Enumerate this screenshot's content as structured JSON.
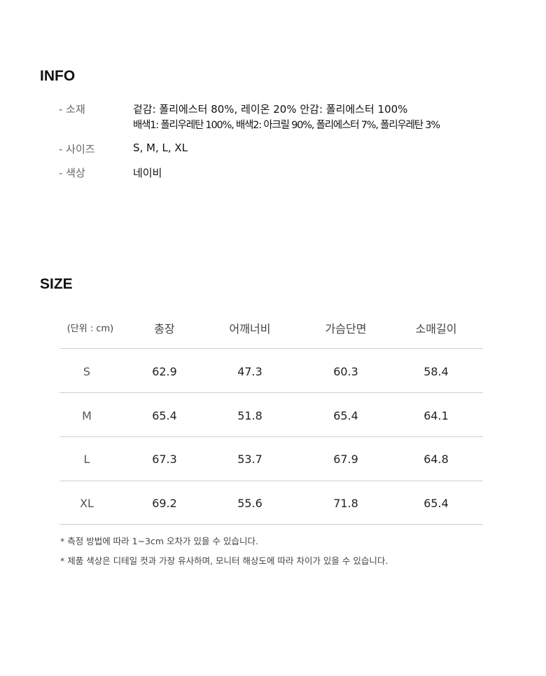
{
  "info": {
    "title": "INFO",
    "rows": [
      {
        "label": "- 소재",
        "lines": [
          "겉감: 폴리에스터 80%, 레이온 20% 안감: 폴리에스터 100%",
          "배색1: 폴리우레탄 100%, 배색2: 아크릴 90%, 폴리에스터 7%, 폴리우레탄 3%"
        ]
      },
      {
        "label": "- 사이즈",
        "lines": [
          "S, M, L, XL"
        ]
      },
      {
        "label": "- 색상",
        "lines": [
          "네이비"
        ]
      }
    ]
  },
  "size": {
    "title": "SIZE",
    "headers": [
      "(단위 : cm)",
      "총장",
      "어깨너비",
      "가슴단면",
      "소매길이"
    ],
    "rows": [
      [
        "S",
        "62.9",
        "47.3",
        "60.3",
        "58.4"
      ],
      [
        "M",
        "65.4",
        "51.8",
        "65.4",
        "64.1"
      ],
      [
        "L",
        "67.3",
        "53.7",
        "67.9",
        "64.8"
      ],
      [
        "XL",
        "69.2",
        "55.6",
        "71.8",
        "65.4"
      ]
    ],
    "notes": [
      "* 측정 방법에 따라 1~3cm 오차가 있을 수 있습니다.",
      "* 제품 색상은 디테일 컷과 가장 유사하며, 모니터 해상도에 따라 차이가 있을 수 있습니다."
    ]
  }
}
